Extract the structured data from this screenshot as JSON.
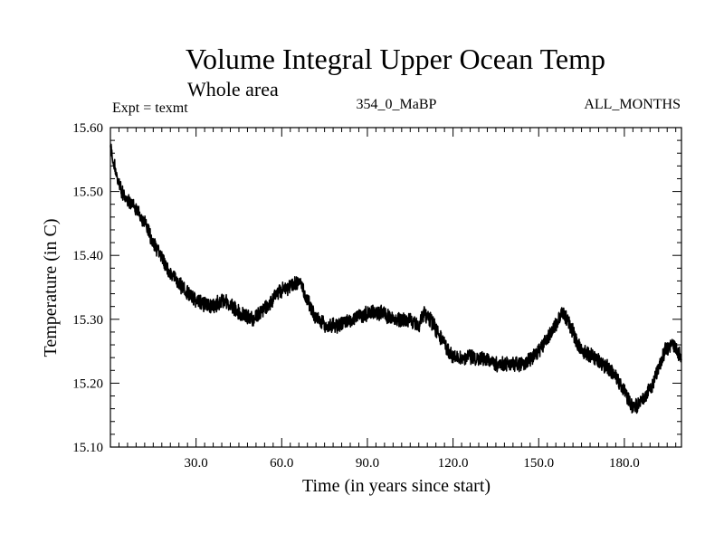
{
  "chart_data": {
    "type": "line",
    "title": "Volume Integral Upper Ocean Temp",
    "subtitle": "Whole area",
    "experiment_label": "Expt = texmt",
    "period_label": "354_0_MaBP",
    "season_label": "ALL_MONTHS",
    "xlabel": "Time (in years since start)",
    "ylabel": "Temperature (in C)",
    "xlim": [
      0,
      200
    ],
    "ylim": [
      15.1,
      15.6
    ],
    "xticks": [
      30,
      60,
      90,
      120,
      150,
      180
    ],
    "xtick_labels": [
      "30.0",
      "60.0",
      "90.0",
      "120.0",
      "150.0",
      "180.0"
    ],
    "yticks": [
      15.1,
      15.2,
      15.3,
      15.4,
      15.5,
      15.6
    ],
    "ytick_labels": [
      "15.10",
      "15.20",
      "15.30",
      "15.40",
      "15.50",
      "15.60"
    ],
    "grid": false,
    "series": [
      {
        "name": "Volume integral upper ocean temperature",
        "color": "#000000",
        "noise_amplitude": 0.012,
        "trend_x": [
          0,
          1,
          3,
          5,
          8,
          12,
          15,
          20,
          25,
          30,
          35,
          40,
          45,
          50,
          55,
          58,
          62,
          66,
          70,
          72,
          76,
          80,
          85,
          90,
          95,
          100,
          104,
          108,
          110,
          112,
          116,
          120,
          125,
          130,
          135,
          140,
          145,
          150,
          153,
          156,
          158,
          160,
          163,
          165,
          170,
          175,
          180,
          183,
          186,
          190,
          194,
          197,
          200
        ],
        "trend_y": [
          15.57,
          15.55,
          15.51,
          15.49,
          15.48,
          15.45,
          15.42,
          15.38,
          15.35,
          15.33,
          15.32,
          15.33,
          15.31,
          15.3,
          15.32,
          15.34,
          15.35,
          15.36,
          15.32,
          15.3,
          15.29,
          15.29,
          15.3,
          15.31,
          15.31,
          15.3,
          15.3,
          15.29,
          15.31,
          15.3,
          15.27,
          15.24,
          15.24,
          15.24,
          15.23,
          15.23,
          15.23,
          15.25,
          15.27,
          15.29,
          15.31,
          15.3,
          15.27,
          15.25,
          15.24,
          15.22,
          15.19,
          15.16,
          15.17,
          15.2,
          15.25,
          15.26,
          15.24
        ]
      }
    ]
  }
}
